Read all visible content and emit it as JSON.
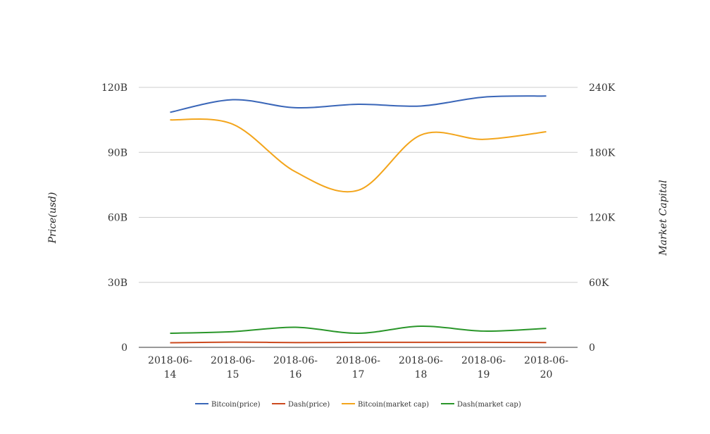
{
  "chart_data": {
    "type": "line",
    "categories": [
      "2018-06-14",
      "2018-06-15",
      "2018-06-16",
      "2018-06-17",
      "2018-06-18",
      "2018-06-19",
      "2018-06-20"
    ],
    "x_tick_labels": [
      [
        "2018-06-",
        "14"
      ],
      [
        "2018-06-",
        "15"
      ],
      [
        "2018-06-",
        "16"
      ],
      [
        "2018-06-",
        "17"
      ],
      [
        "2018-06-",
        "18"
      ],
      [
        "2018-06-",
        "19"
      ],
      [
        "2018-06-",
        "20"
      ]
    ],
    "ylabel_left": "Price(usd)",
    "ylabel_right": "Market Capital",
    "ylim_left": [
      0,
      120000000000
    ],
    "ylim_right": [
      0,
      240000
    ],
    "yticks_left": [
      "0",
      "30B",
      "60B",
      "90B",
      "120B"
    ],
    "yticks_right": [
      "0",
      "60K",
      "120K",
      "180K",
      "240K"
    ],
    "grid": true,
    "legend_position": "bottom",
    "series": [
      {
        "name": "Bitcoin(price)",
        "axis": "left",
        "color": "#3a66b8",
        "values": [
          108500000000,
          114300000000,
          110600000000,
          112200000000,
          111400000000,
          115500000000,
          116000000000
        ]
      },
      {
        "name": "Dash(price)",
        "axis": "left",
        "color": "#cc4a1f",
        "values": [
          2100000000,
          2400000000,
          2200000000,
          2300000000,
          2300000000,
          2300000000,
          2200000000
        ]
      },
      {
        "name": "Bitcoin(market cap)",
        "axis": "right",
        "color": "#f3a51c",
        "values": [
          210000,
          206000,
          162000,
          145000,
          196000,
          192000,
          199000
        ]
      },
      {
        "name": "Dash(market cap)",
        "axis": "right",
        "color": "#2a962a",
        "values": [
          13000,
          14500,
          18500,
          13000,
          19500,
          15000,
          17500
        ]
      }
    ]
  }
}
